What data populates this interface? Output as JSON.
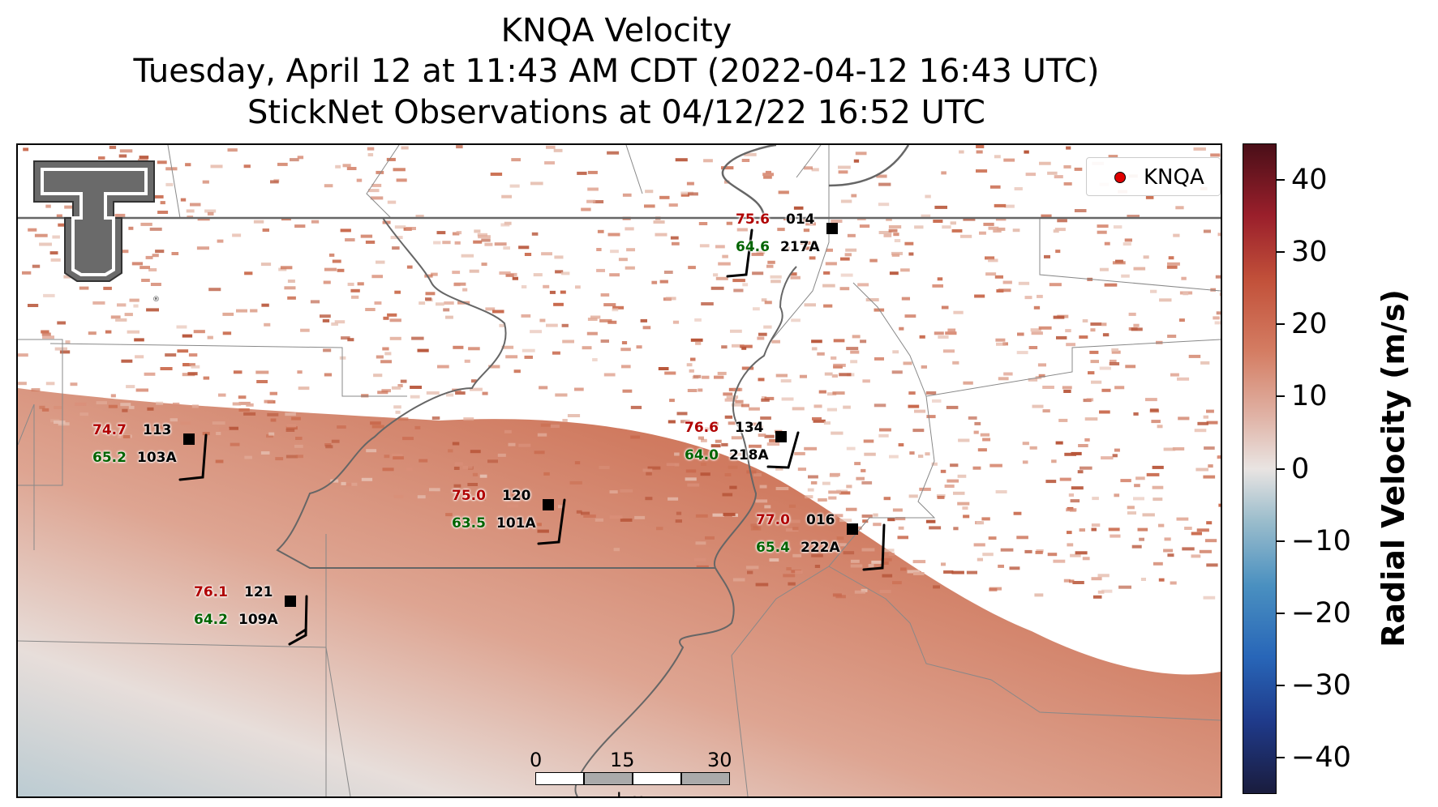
{
  "title": {
    "line1": "KNQA Velocity",
    "line2": "Tuesday, April 12 at 11:43 AM CDT (2022-04-12 16:43 UTC)",
    "line3": "StickNet Observations at 04/12/22 16:52 UTC"
  },
  "legend": {
    "label": "KNQA",
    "marker_color": "#e00000"
  },
  "logo": {
    "icon": "double-t-logo",
    "mark": "®"
  },
  "stations": [
    {
      "temp": "75.6",
      "id_top": "014",
      "dew": "64.6",
      "id_bottom": "217A"
    },
    {
      "temp": "74.7",
      "id_top": "113",
      "dew": "65.2",
      "id_bottom": "103A"
    },
    {
      "temp": "76.6",
      "id_top": "134",
      "dew": "64.0",
      "id_bottom": "218A"
    },
    {
      "temp": "75.0",
      "id_top": "120",
      "dew": "63.5",
      "id_bottom": "101A"
    },
    {
      "temp": "77.0",
      "id_top": "016",
      "dew": "65.4",
      "id_bottom": "222A"
    },
    {
      "temp": "76.1",
      "id_top": "121",
      "dew": "64.2",
      "id_bottom": "109A"
    }
  ],
  "scalebar": {
    "labels": [
      "0",
      "15",
      "30"
    ],
    "unit": "km"
  },
  "colorbar": {
    "label": "Radial Velocity (m/s)",
    "ticks": [
      "40",
      "30",
      "20",
      "10",
      "0",
      "−10",
      "−20",
      "−30",
      "−40"
    ],
    "range": [
      -45,
      45
    ],
    "colors": {
      "min": "#1a1c3d",
      "zero": "#e9e4e2",
      "max": "#4a0f18"
    }
  },
  "colors": {
    "temp": "#b00000",
    "dew": "#006400",
    "id": "#000000",
    "echo": "#c8603f"
  }
}
